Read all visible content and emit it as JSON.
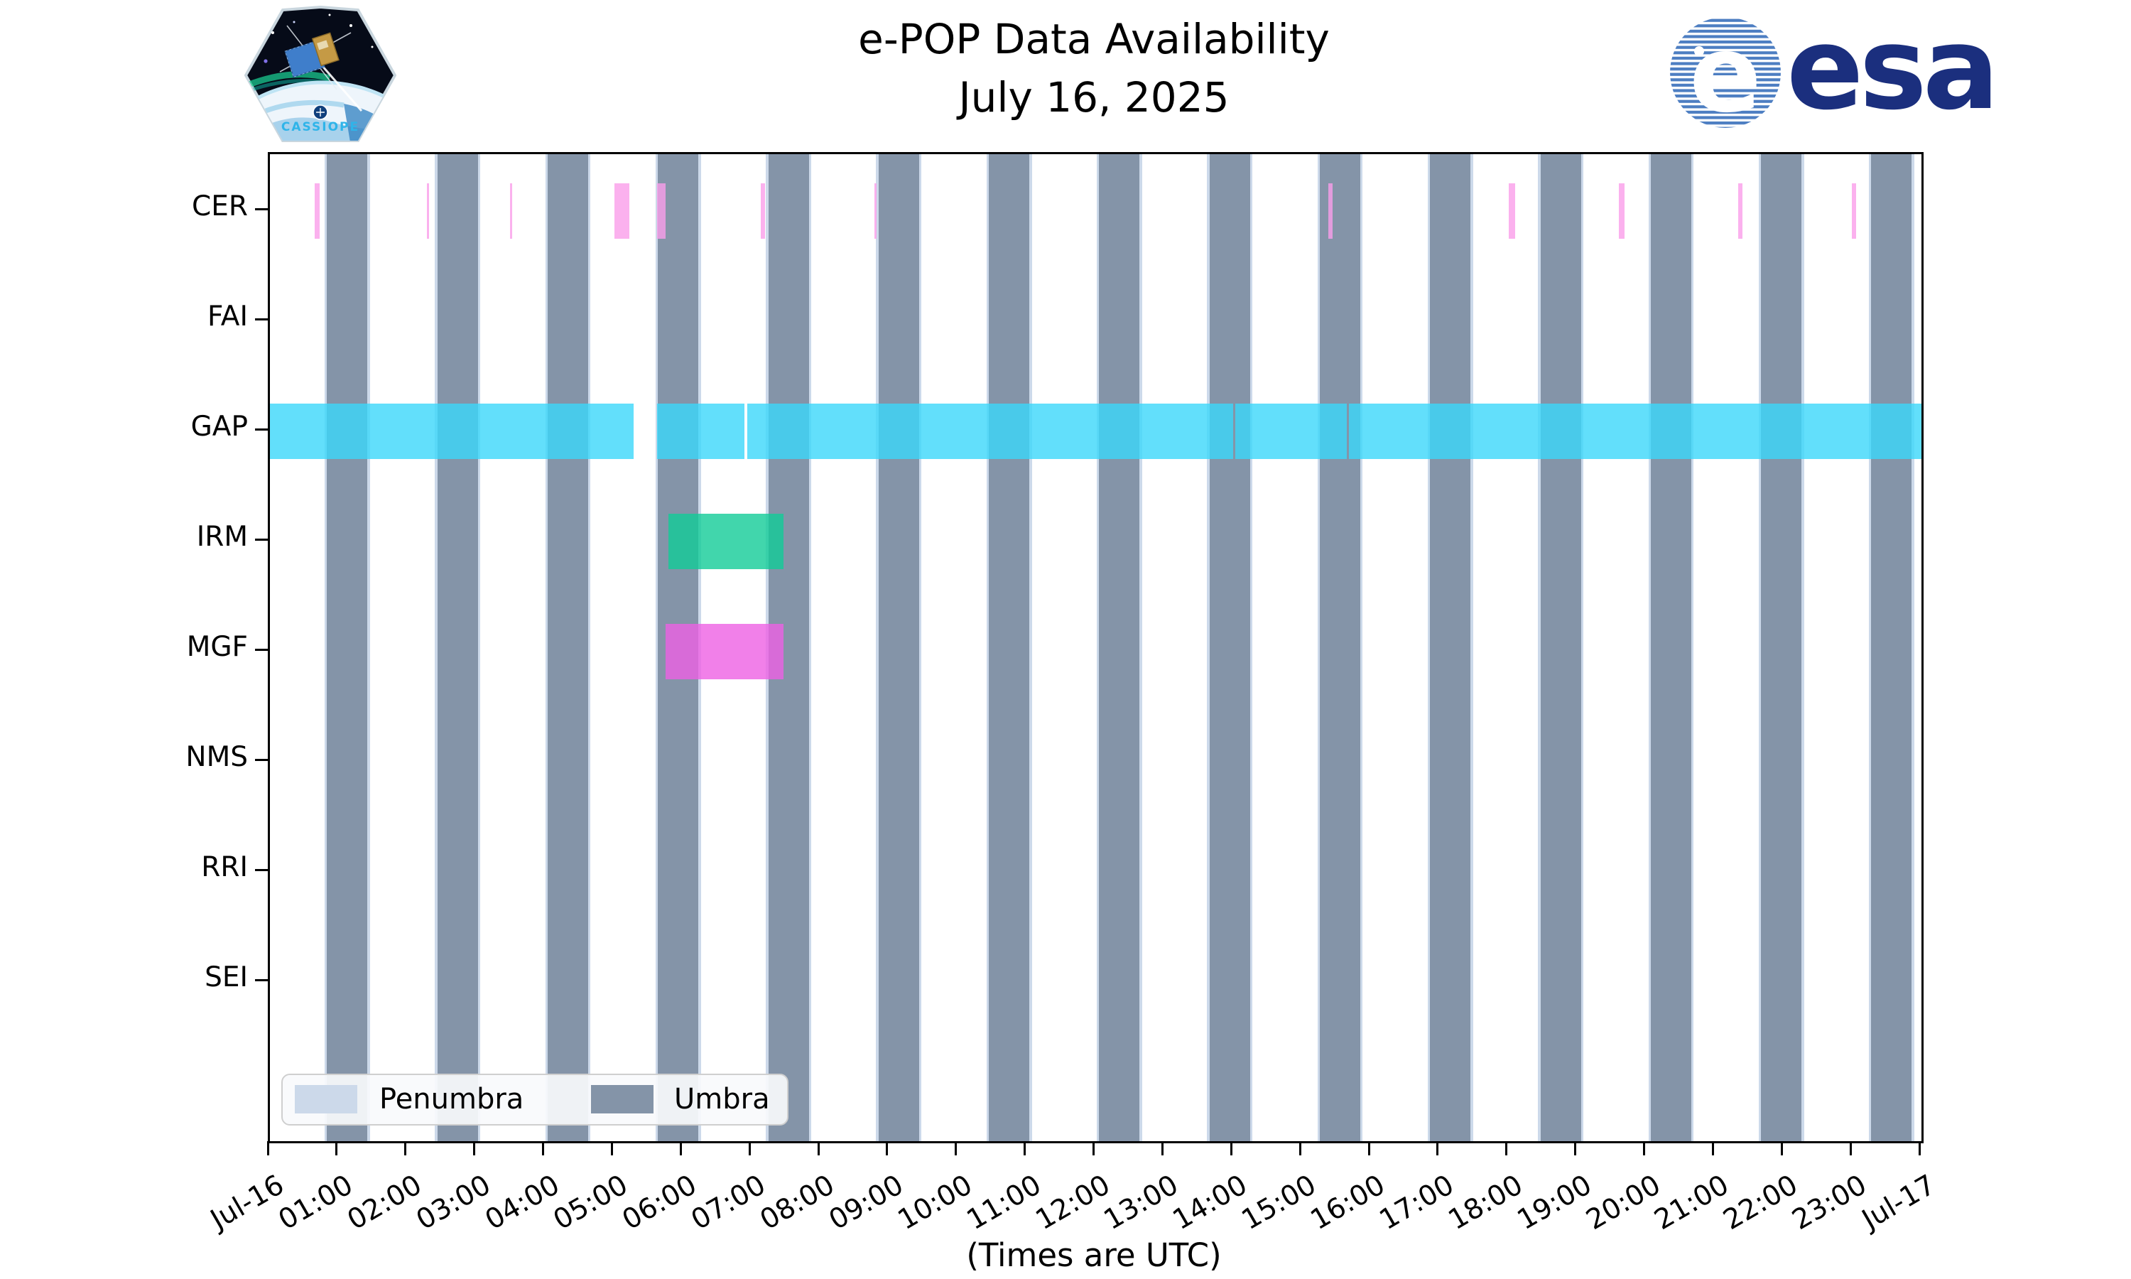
{
  "title": {
    "line1": "e-POP Data Availability",
    "line2": "July 16, 2025"
  },
  "xlabel": "(Times are UTC)",
  "logos": {
    "patch_text": "CASSIOPE",
    "esa_text": "esa",
    "esa_navy": "#1b2f7e",
    "esa_stripe_blue": "#4d7ec2",
    "patch_text_color": "#2fb4e9"
  },
  "legend": {
    "items": [
      {
        "label": "Penumbra",
        "color": "#ccd9ea"
      },
      {
        "label": "Umbra",
        "color": "#8494a8"
      }
    ]
  },
  "chart_data": {
    "type": "timeline",
    "title": "e-POP Data Availability July 16, 2025",
    "xlabel": "(Times are UTC)",
    "x_axis": {
      "hours_range": [
        0,
        24
      ],
      "tick_every_h": 1,
      "labels": [
        "Jul-16",
        "01:00",
        "02:00",
        "03:00",
        "04:00",
        "05:00",
        "06:00",
        "07:00",
        "08:00",
        "09:00",
        "10:00",
        "11:00",
        "12:00",
        "13:00",
        "14:00",
        "15:00",
        "16:00",
        "17:00",
        "18:00",
        "19:00",
        "20:00",
        "21:00",
        "22:00",
        "23:00",
        "Jul-17"
      ]
    },
    "rows": [
      "CER",
      "FAI",
      "GAP",
      "IRM",
      "MGF",
      "NMS",
      "RRI",
      "SEI"
    ],
    "shading": {
      "umbra": {
        "color": "#8494a8",
        "first_start_h": 0.83,
        "period_h": 1.603,
        "width_h": 0.588,
        "count": 15
      },
      "penumbra": {
        "color": "#ccd9ea",
        "strip_width_h": 0.035
      }
    },
    "series": [
      {
        "row": "CER",
        "color": "rgba(250,158,234,0.8)",
        "segments_h": [
          [
            0.651,
            0.723
          ],
          [
            2.282,
            2.313
          ],
          [
            3.49,
            3.521
          ],
          [
            5.008,
            5.225
          ],
          [
            5.628,
            5.752
          ],
          [
            7.136,
            7.198
          ],
          [
            8.788,
            8.819
          ],
          [
            15.377,
            15.439
          ],
          [
            18.0,
            18.093
          ],
          [
            19.601,
            19.683
          ],
          [
            21.336,
            21.398
          ],
          [
            22.988,
            23.05
          ]
        ]
      },
      {
        "row": "FAI",
        "color": "rgba(250,158,234,0.8)",
        "segments_h": []
      },
      {
        "row": "GAP",
        "color": "rgba(59,215,250,0.8)",
        "segments_h": [
          [
            0.0,
            5.288
          ],
          [
            5.628,
            6.898
          ],
          [
            6.934,
            13.993
          ],
          [
            14.024,
            15.645
          ],
          [
            15.676,
            24.0
          ]
        ]
      },
      {
        "row": "IRM",
        "color": "rgba(18,204,151,0.8)",
        "segments_h": [
          [
            5.793,
            7.467
          ]
        ]
      },
      {
        "row": "MGF",
        "color": "rgba(238,96,228,0.8)",
        "segments_h": [
          [
            5.752,
            7.467
          ]
        ]
      },
      {
        "row": "NMS",
        "color": "rgba(238,96,228,0.8)",
        "segments_h": []
      },
      {
        "row": "RRI",
        "color": "rgba(238,96,228,0.8)",
        "segments_h": []
      },
      {
        "row": "SEI",
        "color": "rgba(238,96,228,0.8)",
        "segments_h": []
      }
    ]
  }
}
